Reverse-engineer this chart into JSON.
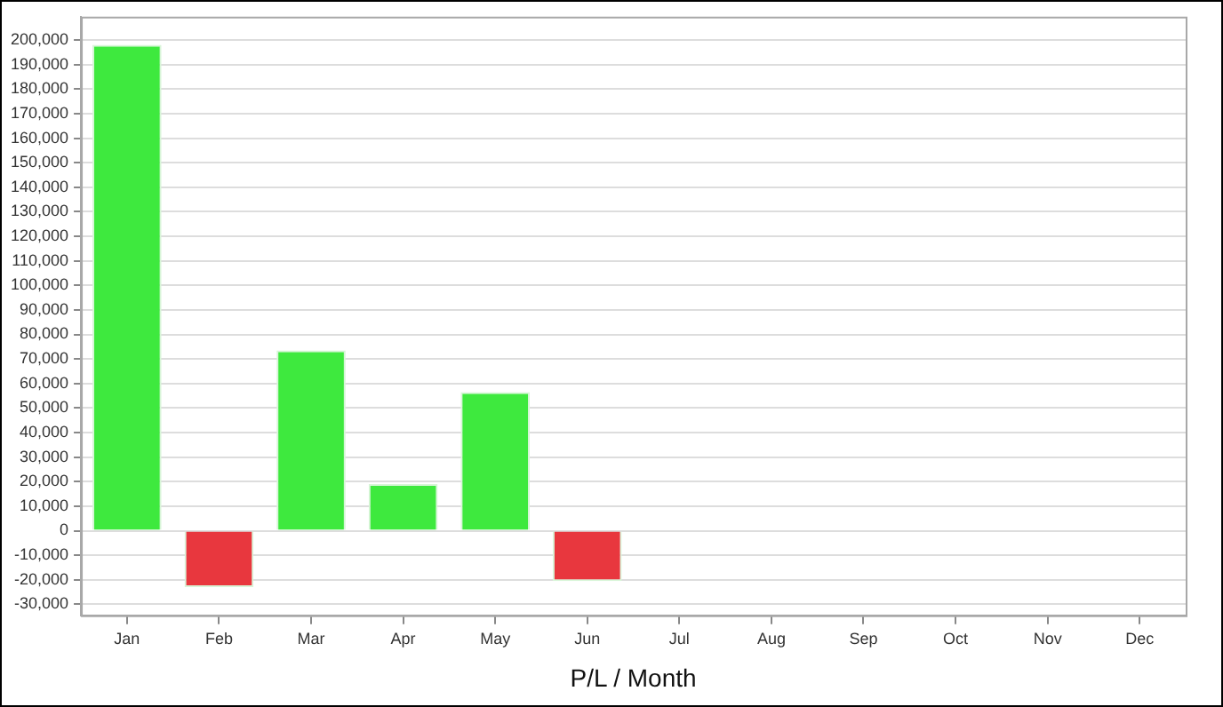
{
  "chart_data": {
    "type": "bar",
    "xlabel": "P/L / Month",
    "categories": [
      "Jan",
      "Feb",
      "Mar",
      "Apr",
      "May",
      "Jun",
      "Jul",
      "Aug",
      "Sep",
      "Oct",
      "Nov",
      "Dec"
    ],
    "values": [
      198000,
      -23000,
      73500,
      19000,
      56500,
      -20500,
      null,
      null,
      null,
      null,
      null,
      null
    ],
    "colors": [
      "#3ee93e",
      "#e8373e",
      "#3ee93e",
      "#3ee93e",
      "#3ee93e",
      "#e8373e",
      null,
      null,
      null,
      null,
      null,
      null
    ],
    "ylim": [
      -34500,
      209500
    ],
    "yticks": [
      {
        "value": -30000,
        "label": "-30,000"
      },
      {
        "value": -20000,
        "label": "-20,000"
      },
      {
        "value": -10000,
        "label": "-10,000"
      },
      0,
      {
        "value": 10000,
        "label": "10,000"
      },
      {
        "value": 20000,
        "label": "20,000"
      },
      {
        "value": 30000,
        "label": "30,000"
      },
      {
        "value": 40000,
        "label": "40,000"
      },
      {
        "value": 50000,
        "label": "50,000"
      },
      {
        "value": 60000,
        "label": "60,000"
      },
      {
        "value": 70000,
        "label": "70,000"
      },
      {
        "value": 80000,
        "label": "80,000"
      },
      {
        "value": 90000,
        "label": "90,000"
      },
      {
        "value": 100000,
        "label": "100,000"
      },
      {
        "value": 110000,
        "label": "110,000"
      },
      {
        "value": 120000,
        "label": "120,000"
      },
      {
        "value": 130000,
        "label": "130,000"
      },
      {
        "value": 140000,
        "label": "140,000"
      },
      {
        "value": 150000,
        "label": "150,000"
      },
      {
        "value": 160000,
        "label": "160,000"
      },
      {
        "value": 170000,
        "label": "170,000"
      },
      {
        "value": 180000,
        "label": "180,000"
      },
      {
        "value": 190000,
        "label": "190,000"
      },
      {
        "value": 200000,
        "label": "200,000"
      }
    ],
    "grid": "y",
    "legend": false
  }
}
